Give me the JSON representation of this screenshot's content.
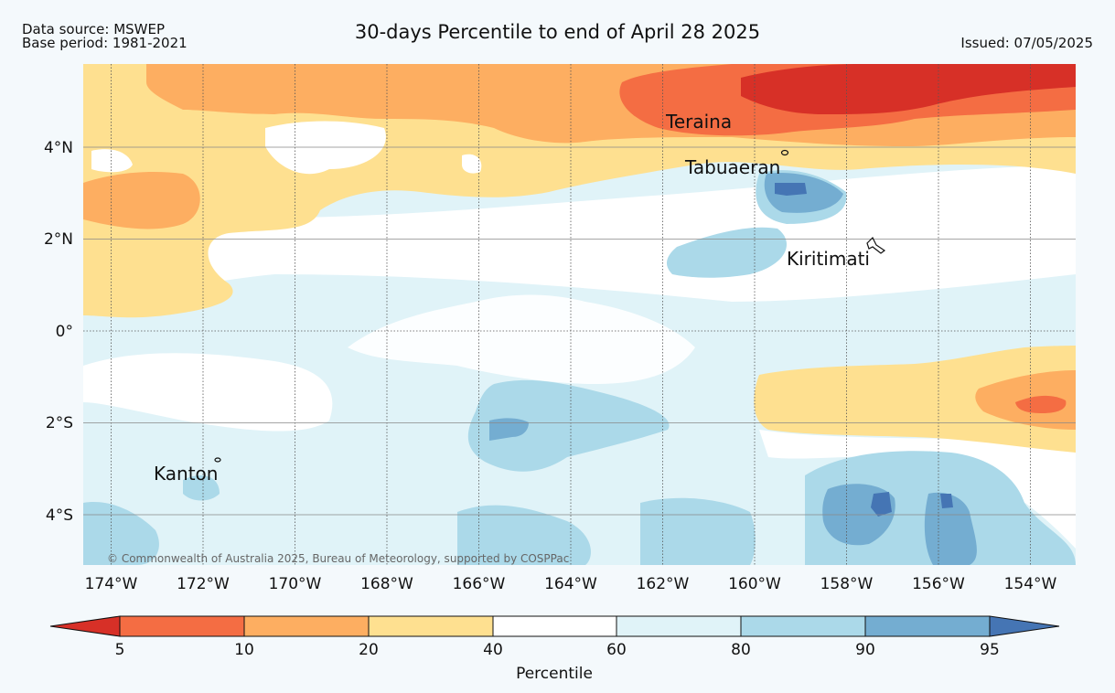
{
  "header": {
    "data_source": "Data source: MSWEP",
    "base_period": "Base period: 1981-2021",
    "title": "30-days Percentile to end of April 28 2025",
    "issued": "Issued: 07/05/2025"
  },
  "map": {
    "lon_labels": [
      "174°W",
      "172°W",
      "170°W",
      "168°W",
      "166°W",
      "164°W",
      "162°W",
      "160°W",
      "158°W",
      "156°W",
      "154°W"
    ],
    "lat_labels": [
      "4°N",
      "2°N",
      "0°",
      "2°S",
      "4°S"
    ],
    "places": [
      {
        "name": "Teraina",
        "lon": -159.4,
        "lat": 4.7
      },
      {
        "name": "Tabuaeran",
        "lon": -159.3,
        "lat": 3.9
      },
      {
        "name": "Kiritimati",
        "lon": -157.4,
        "lat": 1.9
      },
      {
        "name": "Kanton",
        "lon": -171.7,
        "lat": -2.8
      }
    ],
    "copyright": "© Commonwealth of Australia 2025, Bureau of Meteorology, supported by COSPPac"
  },
  "colorbar": {
    "label": "Percentile",
    "tick_labels": [
      "5",
      "10",
      "20",
      "40",
      "60",
      "80",
      "90",
      "95"
    ],
    "colors": [
      "#d73027",
      "#f46d43",
      "#fdae61",
      "#fee090",
      "#ffffff",
      "#e0f3f8",
      "#abd9e9",
      "#74add1",
      "#4575b4"
    ]
  }
}
